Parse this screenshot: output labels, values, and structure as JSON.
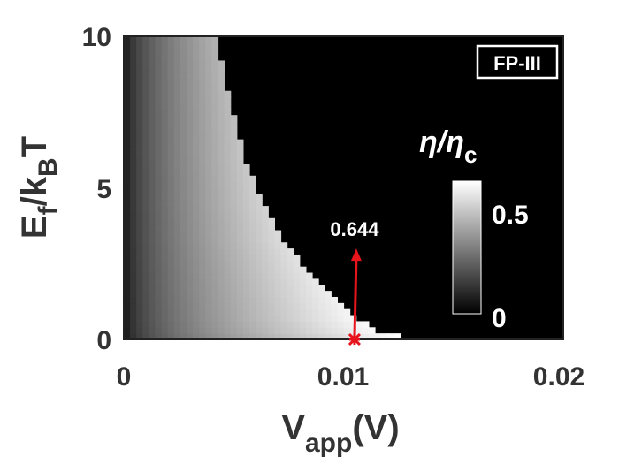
{
  "chart_data": {
    "type": "heatmap",
    "panel_tag": "FP-III",
    "xlabel": {
      "main": "V",
      "sub": "app",
      "tail": "(V)"
    },
    "ylabel": {
      "p1": "E",
      "s1": "f",
      "p2": "/k",
      "s2": "B",
      "p3": "T"
    },
    "xlim": [
      0,
      0.02
    ],
    "ylim": [
      0,
      10
    ],
    "xticks": [
      "0",
      "0.01",
      "0.02"
    ],
    "yticks": [
      "0",
      "5",
      "10"
    ],
    "colorbar": {
      "label_main": "η/η",
      "label_sub": "c",
      "ticks": [
        "0",
        "0.5"
      ],
      "range": [
        0,
        0.644
      ],
      "colormap": "gray"
    },
    "annotation": {
      "text": "0.644",
      "x": 0.0105,
      "y": 0,
      "color": "#e8141c"
    },
    "field": {
      "description_values": "efficiency ratio over (V_app, Ef/kBT)",
      "boundary_points": [
        [
          0.0042,
          10
        ],
        [
          0.0048,
          8
        ],
        [
          0.0055,
          6
        ],
        [
          0.0063,
          4.5
        ],
        [
          0.0072,
          3.3
        ],
        [
          0.0082,
          2.4
        ],
        [
          0.0093,
          1.5
        ],
        [
          0.0105,
          0.7
        ],
        [
          0.0117,
          0.25
        ],
        [
          0.013,
          0
        ]
      ],
      "peak_value": 0.644
    }
  }
}
